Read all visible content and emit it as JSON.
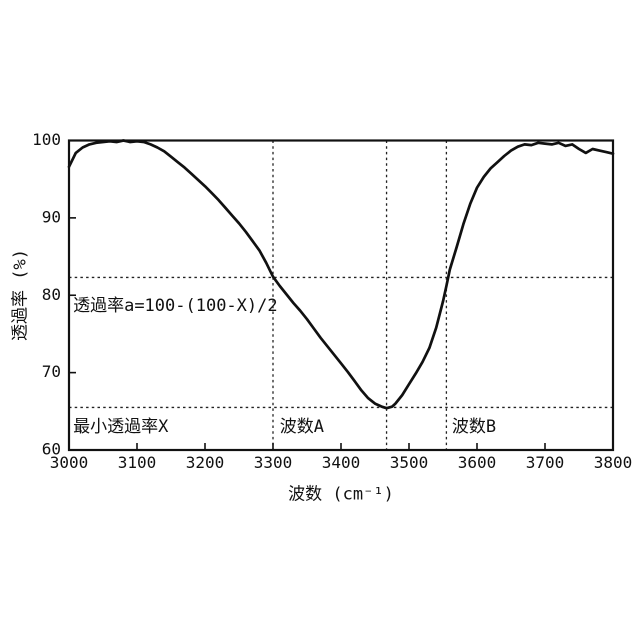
{
  "chart_data": {
    "type": "line",
    "title": "",
    "xlabel": "波数 (cm⁻¹)",
    "ylabel": "透過率 (%)",
    "xlim": [
      3000,
      3800
    ],
    "ylim": [
      60,
      100
    ],
    "xticks": [
      "3000",
      "3100",
      "3200",
      "3300",
      "3400",
      "3500",
      "3600",
      "3700",
      "3800"
    ],
    "xtick_values": [
      3000,
      3100,
      3200,
      3300,
      3400,
      3500,
      3600,
      3700,
      3800
    ],
    "yticks": [
      "60",
      "70",
      "80",
      "90",
      "100"
    ],
    "ytick_values": [
      60,
      70,
      80,
      90,
      100
    ],
    "grid": false,
    "legend": "none",
    "line_color": "#111111",
    "dashed_line_color": "#222222",
    "background_color": "#ffffff",
    "series": [
      {
        "name": "IR transmittance spectrum",
        "x": [
          3000,
          3010,
          3020,
          3030,
          3040,
          3050,
          3060,
          3070,
          3080,
          3090,
          3100,
          3110,
          3120,
          3130,
          3140,
          3150,
          3160,
          3170,
          3180,
          3190,
          3200,
          3210,
          3220,
          3230,
          3240,
          3250,
          3260,
          3270,
          3280,
          3290,
          3300,
          3310,
          3320,
          3330,
          3340,
          3350,
          3360,
          3370,
          3380,
          3390,
          3400,
          3410,
          3420,
          3430,
          3440,
          3450,
          3460,
          3467,
          3475,
          3480,
          3490,
          3500,
          3510,
          3520,
          3530,
          3540,
          3550,
          3555,
          3560,
          3570,
          3580,
          3590,
          3600,
          3610,
          3620,
          3630,
          3640,
          3650,
          3660,
          3670,
          3680,
          3690,
          3700,
          3710,
          3720,
          3730,
          3740,
          3750,
          3760,
          3770,
          3780,
          3790,
          3800
        ],
        "y": [
          96.6,
          98.4,
          99.1,
          99.5,
          99.7,
          99.8,
          99.9,
          99.8,
          100.0,
          99.8,
          99.9,
          99.8,
          99.5,
          99.1,
          98.6,
          97.9,
          97.2,
          96.5,
          95.7,
          94.9,
          94.1,
          93.2,
          92.3,
          91.3,
          90.3,
          89.3,
          88.2,
          87.0,
          85.8,
          84.2,
          82.4,
          81.2,
          80.1,
          79.0,
          78.0,
          76.9,
          75.7,
          74.5,
          73.4,
          72.3,
          71.2,
          70.1,
          68.9,
          67.7,
          66.7,
          66.0,
          65.6,
          65.4,
          65.6,
          66.0,
          67.1,
          68.5,
          69.9,
          71.4,
          73.2,
          75.8,
          79.2,
          81.2,
          83.3,
          86.2,
          89.2,
          91.8,
          93.9,
          95.3,
          96.4,
          97.2,
          98.0,
          98.7,
          99.2,
          99.5,
          99.4,
          99.7,
          99.6,
          99.5,
          99.7,
          99.3,
          99.5,
          98.9,
          98.4,
          98.9,
          98.7,
          98.5,
          98.3
        ]
      }
    ],
    "reference_lines": {
      "vertical": [
        {
          "name": "wavenumber-A-line",
          "x": 3300
        },
        {
          "name": "minimum-wavenumber-line",
          "x": 3467
        },
        {
          "name": "wavenumber-B-line",
          "x": 3555
        }
      ],
      "horizontal": [
        {
          "name": "transmittance-a-line",
          "y": 82.3
        },
        {
          "name": "minimum-transmittance-line",
          "y": 65.5
        }
      ]
    },
    "annotations": [
      {
        "name": "formula-label",
        "text": "透過率a=100-(100-X)/2",
        "x": 3006,
        "y": 78.6
      },
      {
        "name": "min-transmittance-label",
        "text": "最小透過率X",
        "x": 3006,
        "y": 63.0
      },
      {
        "name": "wavenumber-a-label",
        "text": "波数A",
        "x": 3310,
        "y": 63.0
      },
      {
        "name": "wavenumber-b-label",
        "text": "波数B",
        "x": 3563,
        "y": 63.0
      }
    ]
  }
}
